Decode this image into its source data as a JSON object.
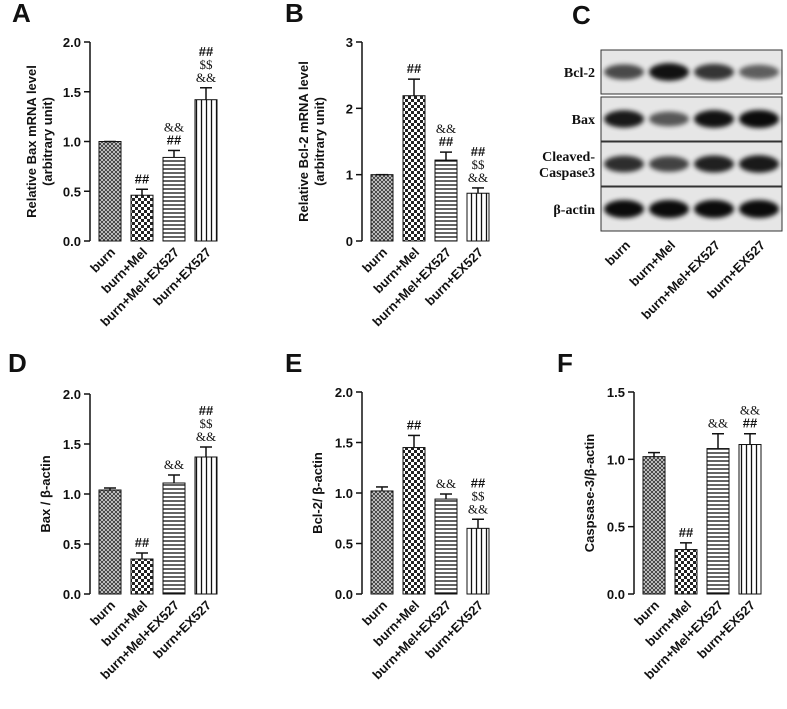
{
  "chart_data": [
    {
      "type": "bar",
      "panel": "A",
      "ylabel": [
        "Relative Bax  mRNA level",
        "(arbitrary unit)"
      ],
      "categories": [
        "burn",
        "burn+Mel",
        "burn+Mel+EX527",
        "burn+EX527"
      ],
      "values": [
        1.0,
        0.46,
        0.84,
        1.42
      ],
      "errors": [
        0,
        0.06,
        0.07,
        0.12
      ],
      "annotations": [
        [],
        [
          "##"
        ],
        [
          "&&",
          "##"
        ],
        [
          "##",
          "$$",
          "&&"
        ]
      ],
      "ylim": [
        0,
        2
      ],
      "yticks": [
        {
          "value": 0,
          "label": "0.0"
        },
        {
          "value": 0.5,
          "label": "0.5"
        },
        {
          "value": 1,
          "label": "1.0"
        },
        {
          "value": 1.5,
          "label": "1.5"
        },
        {
          "value": 2,
          "label": "2.0"
        }
      ]
    },
    {
      "type": "bar",
      "panel": "B",
      "ylabel": [
        "Relative Bcl-2  mRNA level",
        "(arbitrary unit)"
      ],
      "categories": [
        "burn",
        "burn+Mel",
        "burn+Mel+EX527",
        "burn+EX527"
      ],
      "values": [
        1.0,
        2.19,
        1.22,
        0.72
      ],
      "errors": [
        0,
        0.25,
        0.12,
        0.08
      ],
      "annotations": [
        [],
        [
          "##"
        ],
        [
          "&&",
          "##"
        ],
        [
          "##",
          "$$",
          "&&"
        ]
      ],
      "ylim": [
        0,
        3
      ],
      "yticks": [
        0,
        1,
        2,
        3
      ]
    },
    {
      "type": "bar",
      "panel": "D",
      "ylabel": [
        "Bax / β-actin"
      ],
      "categories": [
        "burn",
        "burn+Mel",
        "burn+Mel+EX527",
        "burn+EX527"
      ],
      "values": [
        1.04,
        0.35,
        1.11,
        1.37
      ],
      "errors": [
        0.02,
        0.06,
        0.08,
        0.1
      ],
      "annotations": [
        [],
        [
          "##"
        ],
        [
          "&&"
        ],
        [
          "##",
          "$$",
          "&&"
        ]
      ],
      "ylim": [
        0,
        2
      ],
      "yticks": [
        {
          "value": 0,
          "label": "0.0"
        },
        {
          "value": 0.5,
          "label": "0.5"
        },
        {
          "value": 1,
          "label": "1.0"
        },
        {
          "value": 1.5,
          "label": "1.5"
        },
        {
          "value": 2,
          "label": "2.0"
        }
      ]
    },
    {
      "type": "bar",
      "panel": "E",
      "ylabel": [
        "Bcl-2/ β-actin"
      ],
      "categories": [
        "burn",
        "burn+Mel",
        "burn+Mel+EX527",
        "burn+EX527"
      ],
      "values": [
        1.02,
        1.45,
        0.94,
        0.65
      ],
      "errors": [
        0.04,
        0.12,
        0.05,
        0.09
      ],
      "annotations": [
        [],
        [
          "##"
        ],
        [
          "&&"
        ],
        [
          "##",
          "$$",
          "&&"
        ]
      ],
      "ylim": [
        0,
        2
      ],
      "yticks": [
        {
          "value": 0,
          "label": "0.0"
        },
        {
          "value": 0.5,
          "label": "0.5"
        },
        {
          "value": 1,
          "label": "1.0"
        },
        {
          "value": 1.5,
          "label": "1.5"
        },
        {
          "value": 2,
          "label": "2.0"
        }
      ]
    },
    {
      "type": "bar",
      "panel": "F",
      "ylabel": [
        "Caspsase-3/β-actin"
      ],
      "categories": [
        "burn",
        "burn+Mel",
        "burn+Mel+EX527",
        "burn+EX527"
      ],
      "values": [
        1.02,
        0.33,
        1.08,
        1.11
      ],
      "errors": [
        0.03,
        0.05,
        0.11,
        0.08
      ],
      "annotations": [
        [],
        [
          "##"
        ],
        [
          "&&"
        ],
        [
          "&&",
          "##"
        ]
      ],
      "ylim": [
        0,
        1.5
      ],
      "yticks": [
        {
          "value": 0,
          "label": "0.0"
        },
        {
          "value": 0.5,
          "label": "0.5"
        },
        {
          "value": 1,
          "label": "1.0"
        },
        {
          "value": 1.5,
          "label": "1.5"
        }
      ]
    }
  ],
  "blot": {
    "panel": "C",
    "rows": [
      [
        "Bcl-2"
      ],
      [
        "Bax"
      ],
      [
        "Cleaved-",
        "Caspase3"
      ],
      [
        "β-actin"
      ]
    ],
    "lanes": [
      "burn",
      "burn+Mel",
      "burn+Mel+EX527",
      "burn+EX527"
    ]
  }
}
